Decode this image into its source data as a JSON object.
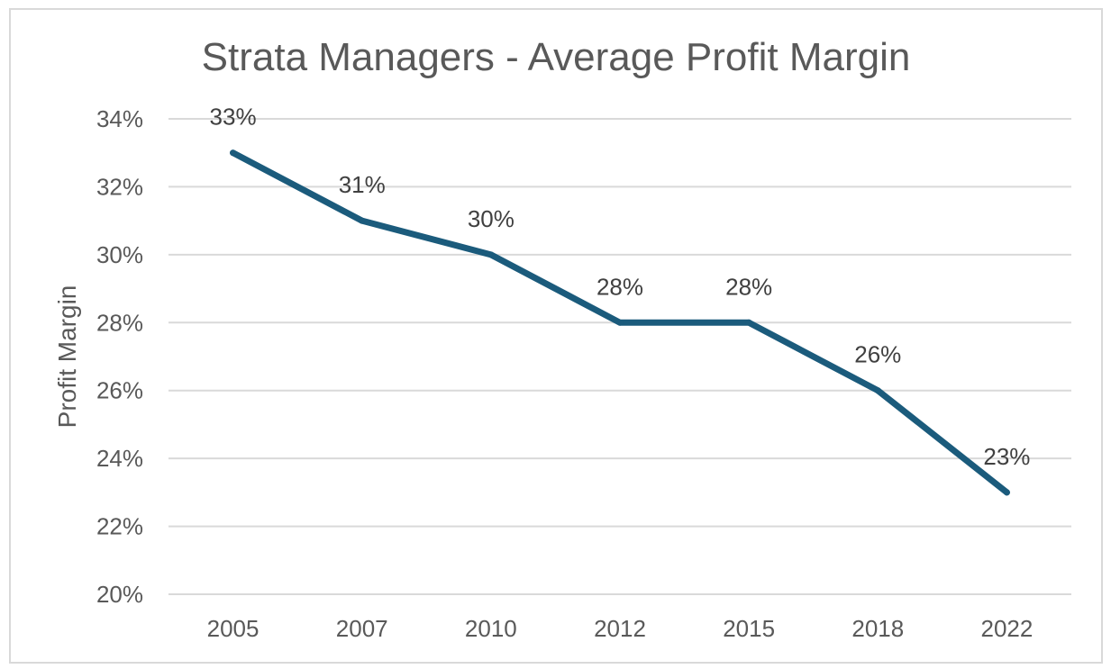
{
  "chart_data": {
    "type": "line",
    "title": "Strata Managers - Average Profit Margin",
    "xlabel": "",
    "ylabel": "Profit Margin",
    "categories": [
      "2005",
      "2007",
      "2010",
      "2012",
      "2015",
      "2018",
      "2022"
    ],
    "series": [
      {
        "values": [
          0.33,
          0.31,
          0.3,
          0.28,
          0.28,
          0.26,
          0.23
        ],
        "labels": [
          "33%",
          "31%",
          "30%",
          "28%",
          "28%",
          "26%",
          "23%"
        ],
        "color": "#1b5b7c"
      }
    ],
    "ylim": [
      0.2,
      0.34
    ],
    "yticks": [
      0.2,
      0.22,
      0.24,
      0.26,
      0.28,
      0.3,
      0.32,
      0.34
    ],
    "ytick_labels": [
      "20%",
      "22%",
      "24%",
      "26%",
      "28%",
      "30%",
      "32%",
      "34%"
    ],
    "grid": true,
    "legend": "none",
    "colors": {
      "grid": "#d9d9d9",
      "text": "#595959",
      "frame": "#d9d9d9"
    }
  }
}
